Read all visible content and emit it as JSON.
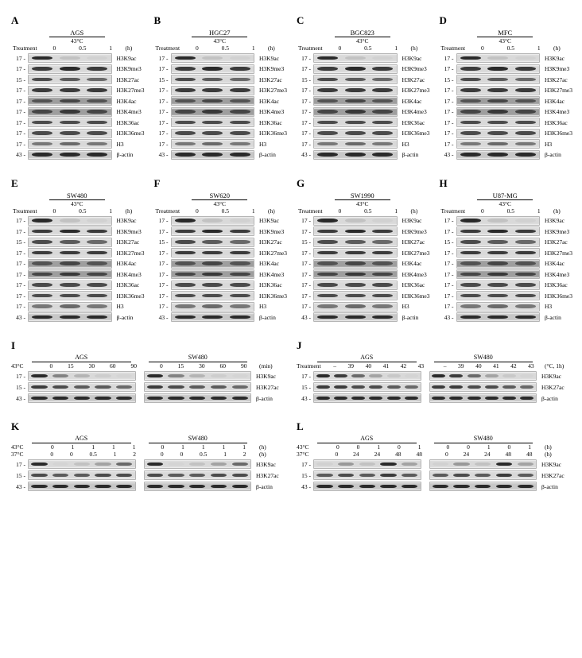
{
  "colors": {
    "blot_bg_light": "#d9d9d9",
    "blot_bg_mid": "#c7c7c7",
    "blot_bg_dark": "#9e9e9e",
    "band_dark": "#2a2a2a",
    "band_mid": "#555555",
    "band_faint": "#9a9a9a",
    "text": "#000000",
    "page_bg": "#ffffff"
  },
  "top_panels": [
    {
      "letter": "A",
      "cell": "AGS"
    },
    {
      "letter": "B",
      "cell": "HGC27"
    },
    {
      "letter": "C",
      "cell": "BGC823"
    },
    {
      "letter": "D",
      "cell": "MFC"
    },
    {
      "letter": "E",
      "cell": "SW480"
    },
    {
      "letter": "F",
      "cell": "SW620"
    },
    {
      "letter": "G",
      "cell": "SW1990"
    },
    {
      "letter": "H",
      "cell": "U87-MG"
    }
  ],
  "top_common": {
    "temp": "43°C",
    "treatment_label": "Treatment",
    "timepoints": [
      "0",
      "0.5",
      "1"
    ],
    "unit": "(h)",
    "markers": [
      {
        "mw": "17",
        "name": "H3K9ac"
      },
      {
        "mw": "17",
        "name": "H3K9me3"
      },
      {
        "mw": "15",
        "name": "H3K27ac"
      },
      {
        "mw": "17",
        "name": "H3K27me3"
      },
      {
        "mw": "17",
        "name": "H3K4ac"
      },
      {
        "mw": "17",
        "name": "H3K4me3"
      },
      {
        "mw": "17",
        "name": "H3K36ac"
      },
      {
        "mw": "17",
        "name": "H3K36me3"
      },
      {
        "mw": "17",
        "name": "H3"
      },
      {
        "mw": "43",
        "name": "β-actin"
      }
    ],
    "band_intensity_pattern": {
      "comment": "Relative band darkness 0..1 per lane; H3K9ac decreases with treatment in most lines, others stable",
      "rows": [
        [
          1.0,
          0.35,
          0.2
        ],
        [
          0.95,
          1.0,
          0.95
        ],
        [
          0.9,
          0.85,
          0.8
        ],
        [
          0.95,
          0.95,
          0.95
        ],
        [
          0.85,
          0.9,
          0.85
        ],
        [
          0.9,
          0.95,
          0.9
        ],
        [
          0.9,
          0.9,
          0.9
        ],
        [
          0.9,
          0.9,
          0.9
        ],
        [
          0.75,
          0.8,
          0.75
        ],
        [
          1.0,
          1.0,
          1.0
        ]
      ]
    }
  },
  "panel_I": {
    "letter": "I",
    "cells": [
      "AGS",
      "SW480"
    ],
    "condition_label": "43°C",
    "timepoints": [
      "0",
      "15",
      "30",
      "60",
      "90"
    ],
    "unit": "(min)",
    "markers": [
      {
        "mw": "17",
        "name": "H3K9ac",
        "intensity": [
          1.0,
          0.7,
          0.45,
          0.25,
          0.15
        ]
      },
      {
        "mw": "15",
        "name": "H3K27ac",
        "intensity": [
          0.95,
          0.9,
          0.85,
          0.85,
          0.8
        ]
      },
      {
        "mw": "43",
        "name": "β-actin",
        "intensity": [
          1.0,
          1.0,
          1.0,
          1.0,
          1.0
        ]
      }
    ]
  },
  "panel_J": {
    "letter": "J",
    "cells": [
      "AGS",
      "SW480"
    ],
    "condition_label": "Treatment",
    "timepoints": [
      "–",
      "39",
      "40",
      "41",
      "42",
      "43"
    ],
    "unit": "(°C, 1h)",
    "markers": [
      {
        "mw": "17",
        "name": "H3K9ac",
        "intensity": [
          1.0,
          0.95,
          0.8,
          0.55,
          0.3,
          0.15
        ]
      },
      {
        "mw": "15",
        "name": "H3K27ac",
        "intensity": [
          0.95,
          0.95,
          0.9,
          0.9,
          0.85,
          0.8
        ]
      },
      {
        "mw": "43",
        "name": "β-actin",
        "intensity": [
          1.0,
          1.0,
          1.0,
          1.0,
          1.0,
          1.0
        ]
      }
    ]
  },
  "panel_K": {
    "letter": "K",
    "cells": [
      "AGS",
      "SW480"
    ],
    "condition_rows": [
      {
        "label": "43°C",
        "values": [
          "0",
          "1",
          "1",
          "1",
          "1"
        ]
      },
      {
        "label": "37°C",
        "values": [
          "0",
          "0",
          "0.5",
          "1",
          "2"
        ]
      }
    ],
    "unit": "(h)",
    "markers": [
      {
        "mw": "17",
        "name": "H3K9ac",
        "intensity": [
          1.0,
          0.15,
          0.35,
          0.55,
          0.8
        ]
      },
      {
        "mw": "15",
        "name": "H3K27ac",
        "intensity": [
          0.9,
          0.85,
          0.85,
          0.9,
          0.9
        ]
      },
      {
        "mw": "43",
        "name": "β-actin",
        "intensity": [
          1.0,
          1.0,
          1.0,
          1.0,
          1.0
        ]
      }
    ]
  },
  "panel_L": {
    "letter": "L",
    "cells": [
      "AGS",
      "SW480"
    ],
    "condition_rows": [
      {
        "label": "43°C",
        "values": [
          "0",
          "0",
          "1",
          "0",
          "1"
        ]
      },
      {
        "label": "37°C",
        "values": [
          "0",
          "24",
          "24",
          "48",
          "48"
        ]
      }
    ],
    "unit": "(h)",
    "markers": [
      {
        "mw": "17",
        "name": "H3K9ac",
        "intensity": [
          0.2,
          0.6,
          0.35,
          1.0,
          0.55
        ]
      },
      {
        "mw": "15",
        "name": "H3K27ac",
        "intensity": [
          0.85,
          0.9,
          0.85,
          0.95,
          0.85
        ]
      },
      {
        "mw": "43",
        "name": "β-actin",
        "intensity": [
          1.0,
          1.0,
          1.0,
          1.0,
          1.0
        ]
      }
    ]
  }
}
